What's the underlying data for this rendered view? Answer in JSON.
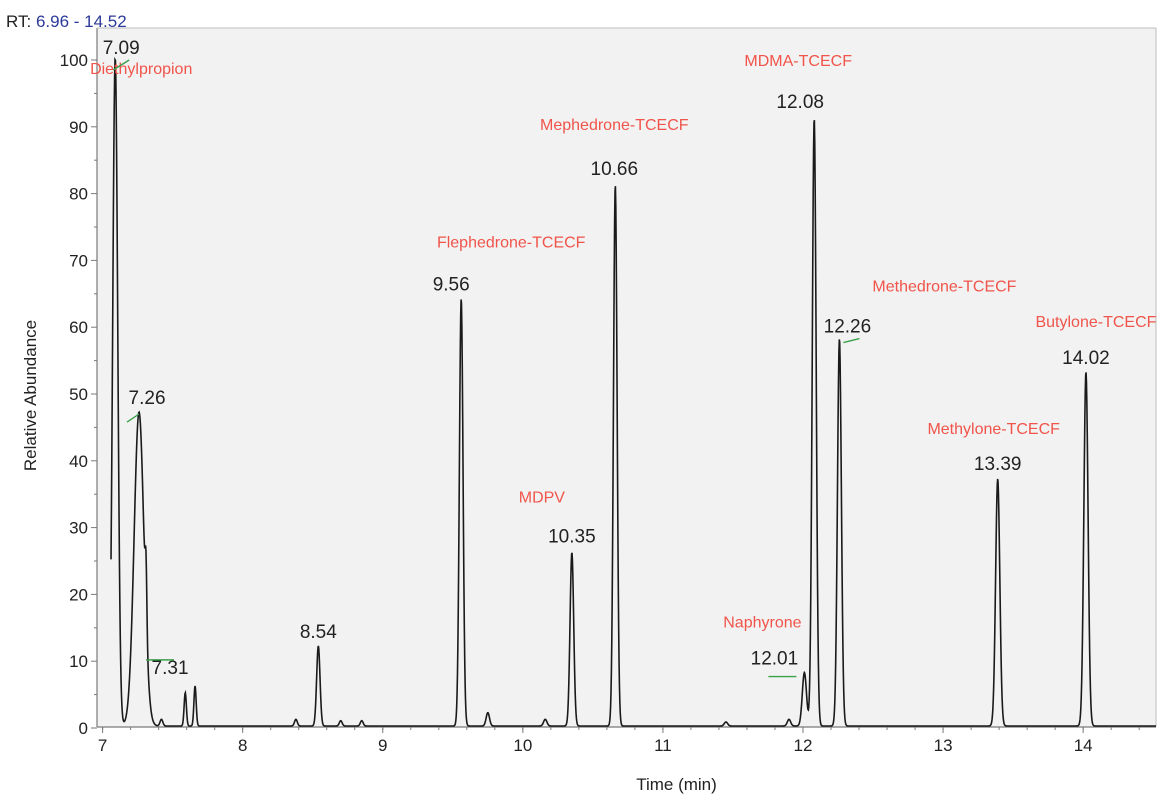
{
  "header": {
    "rt_prefix": "RT:",
    "rt_range": "6.96 - 14.52"
  },
  "chart_data": {
    "type": "line",
    "xlabel": "Time (min)",
    "ylabel": "Relative Abundance",
    "xlim": [
      6.96,
      14.52
    ],
    "ylim": [
      0,
      100
    ],
    "x_ticks": [
      7,
      8,
      9,
      10,
      11,
      12,
      13,
      14
    ],
    "y_ticks": [
      0,
      10,
      20,
      30,
      40,
      50,
      60,
      70,
      80,
      90,
      100
    ],
    "grid": false,
    "colors": {
      "trace": "#1a1a1a",
      "peak_name": "#f0544a",
      "leader": "#3aa04a",
      "frame": "#7a7a7a",
      "plot_bg": "#f2f2f2"
    },
    "peaks": [
      {
        "rt": 7.09,
        "height": 100,
        "width": 0.018,
        "label": "7.09",
        "name": "Diethylpropion"
      },
      {
        "rt": 7.26,
        "height": 47,
        "width": 0.035,
        "label": "7.26",
        "name": ""
      },
      {
        "rt": 7.31,
        "height": 9,
        "width": 0.006,
        "label": "7.31",
        "name": ""
      },
      {
        "rt": 8.54,
        "height": 12,
        "width": 0.012,
        "label": "8.54",
        "name": ""
      },
      {
        "rt": 9.56,
        "height": 64,
        "width": 0.013,
        "label": "9.56",
        "name": "Flephedrone-TCECF"
      },
      {
        "rt": 10.35,
        "height": 26,
        "width": 0.013,
        "label": "10.35",
        "name": "MDPV"
      },
      {
        "rt": 10.66,
        "height": 81,
        "width": 0.013,
        "label": "10.66",
        "name": "Mephedrone-TCECF"
      },
      {
        "rt": 12.01,
        "height": 8,
        "width": 0.015,
        "label": "12.01",
        "name": "Naphyrone"
      },
      {
        "rt": 12.08,
        "height": 91,
        "width": 0.014,
        "label": "12.08",
        "name": "MDMA-TCECF"
      },
      {
        "rt": 12.26,
        "height": 58,
        "width": 0.014,
        "label": "12.26",
        "name": "Methedrone-TCECF"
      },
      {
        "rt": 13.39,
        "height": 37,
        "width": 0.015,
        "label": "13.39",
        "name": "Methylone-TCECF"
      },
      {
        "rt": 14.02,
        "height": 53,
        "width": 0.015,
        "label": "14.02",
        "name": "Butylone-TCECF"
      }
    ],
    "minor_peaks": [
      {
        "rt": 7.59,
        "height": 5,
        "width": 0.008
      },
      {
        "rt": 7.66,
        "height": 6,
        "width": 0.008
      },
      {
        "rt": 7.42,
        "height": 1,
        "width": 0.01
      },
      {
        "rt": 8.38,
        "height": 1,
        "width": 0.01
      },
      {
        "rt": 8.7,
        "height": 0.8,
        "width": 0.01
      },
      {
        "rt": 8.85,
        "height": 0.8,
        "width": 0.01
      },
      {
        "rt": 9.75,
        "height": 2,
        "width": 0.012
      },
      {
        "rt": 10.16,
        "height": 1,
        "width": 0.012
      },
      {
        "rt": 11.45,
        "height": 0.6,
        "width": 0.012
      },
      {
        "rt": 11.9,
        "height": 1,
        "width": 0.012
      }
    ]
  }
}
